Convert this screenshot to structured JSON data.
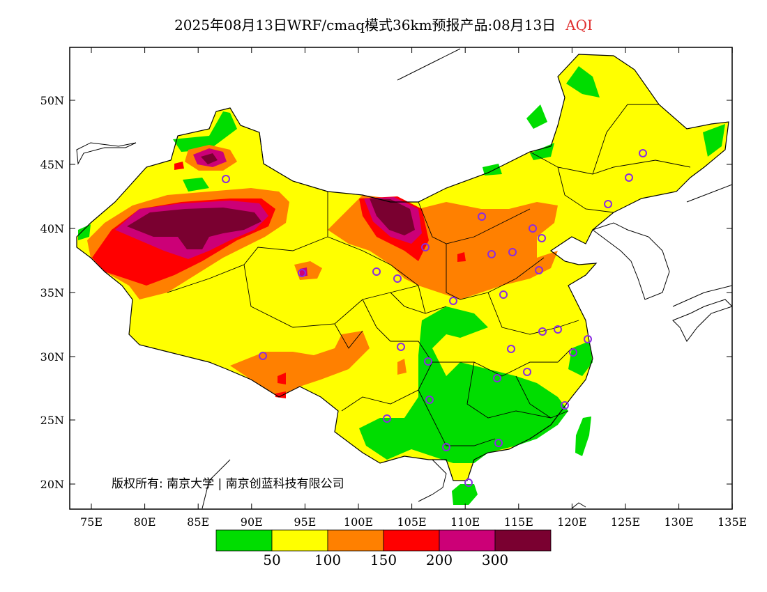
{
  "title": {
    "text": "2025年08月13日WRF/cmaq模式36km预报产品:08月13日",
    "variable": "AQI",
    "variable_color": "#e03030"
  },
  "map": {
    "lon_range": [
      73,
      135
    ],
    "lat_range": [
      18,
      54
    ],
    "lat_ticks": [
      "50N",
      "45N",
      "40N",
      "35N",
      "30N",
      "25N",
      "20N"
    ],
    "lon_ticks": [
      "75E",
      "80E",
      "85E",
      "90E",
      "95E",
      "100E",
      "105E",
      "110E",
      "115E",
      "120E",
      "125E",
      "130E",
      "135E"
    ],
    "copyright": "版权所有: 南京大学 | 南京创蓝科技有限公司",
    "station_marker_color": "#8a2be2"
  },
  "legend": {
    "colors": [
      "#00dd00",
      "#ffff00",
      "#ff8000",
      "#ff0000",
      "#cc0077",
      "#7a0030"
    ],
    "labels": [
      "50",
      "100",
      "150",
      "200",
      "300"
    ]
  }
}
